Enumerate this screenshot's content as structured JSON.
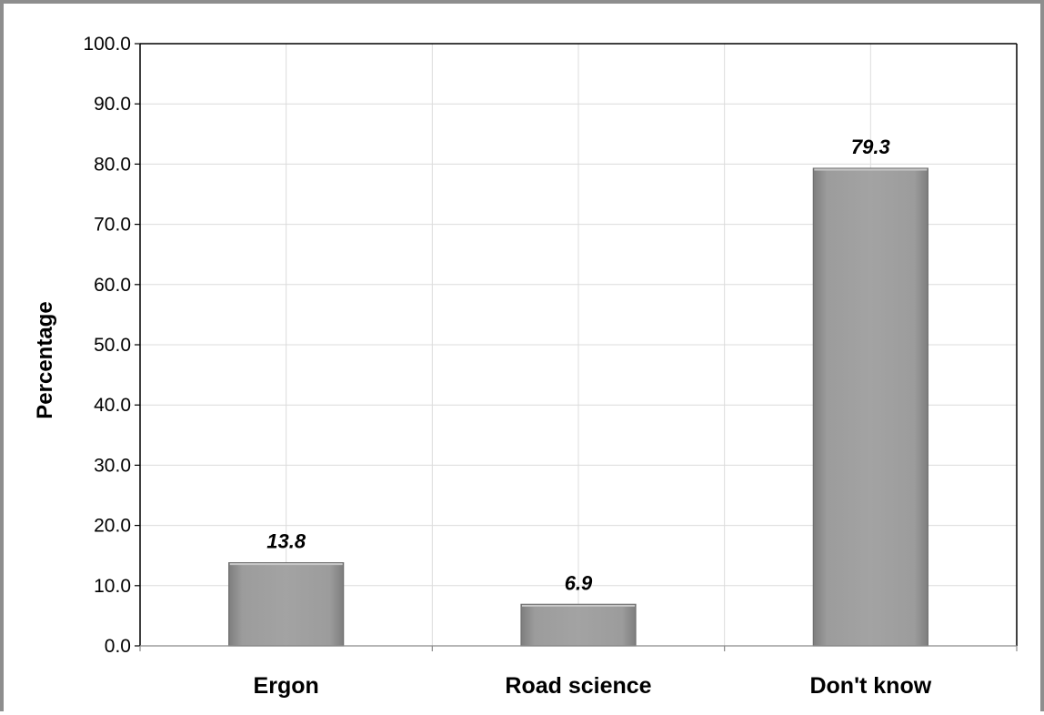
{
  "chart_data": {
    "type": "bar",
    "title": "",
    "xlabel": "",
    "ylabel": "Percentage",
    "categories": [
      "Ergon",
      "Road science",
      "Don't know"
    ],
    "values": [
      13.8,
      6.9,
      79.3
    ],
    "data_labels": [
      "13.8",
      "6.9",
      "79.3"
    ],
    "ylim": [
      0,
      100
    ],
    "yticks": [
      "0.0",
      "10.0",
      "20.0",
      "30.0",
      "40.0",
      "50.0",
      "60.0",
      "70.0",
      "80.0",
      "90.0",
      "100.0"
    ],
    "grid": true,
    "legend": "none",
    "colors": {
      "bar": "#9a9a9a",
      "bar_edge": "#6e6e6e",
      "grid": "#dcdcdc",
      "axis": "#000000",
      "frame": "#8e8e8e"
    }
  }
}
